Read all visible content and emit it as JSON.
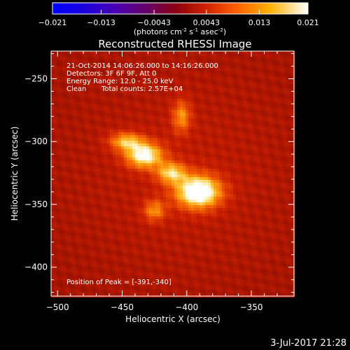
{
  "colorbar": {
    "tick_labels": [
      "-0.021",
      "-0.013",
      "-0.0043",
      "0.0043",
      "0.013",
      "0.021"
    ],
    "min": -0.021,
    "max": 0.021,
    "unit_prefix": "(photons cm",
    "unit_exp1": "-2",
    "unit_mid": " s",
    "unit_exp2": "-1",
    "unit_mid2": " asec",
    "unit_exp3": "-2",
    "unit_suffix": ")"
  },
  "chart_data": {
    "type": "heatmap",
    "title": "Reconstructed RHESSI Image",
    "xlabel": "Heliocentric X (arcsec)",
    "ylabel": "Heliocentric Y (arcsec)",
    "xlim": [
      -505,
      -317
    ],
    "ylim": [
      -423,
      -228
    ],
    "x_ticks": [
      -500,
      -450,
      -400,
      -350
    ],
    "y_ticks": [
      -250,
      -300,
      -350,
      -400
    ],
    "x_tick_labels": [
      "−500",
      "−450",
      "−400",
      "−350"
    ],
    "y_tick_labels": [
      "−250",
      "−300",
      "−350",
      "−400"
    ],
    "sources": [
      {
        "x": -391,
        "y": -340,
        "sx": 12,
        "sy": 9,
        "amp": 1.0
      },
      {
        "x": -433,
        "y": -311,
        "sx": 10,
        "sy": 7,
        "amp": 0.82
      },
      {
        "x": -447,
        "y": -300,
        "sx": 9,
        "sy": 5,
        "amp": 0.55
      },
      {
        "x": -412,
        "y": -325,
        "sx": 8,
        "sy": 6,
        "amp": 0.6
      },
      {
        "x": -404,
        "y": -280,
        "sx": 5,
        "sy": 9,
        "amp": 0.45
      },
      {
        "x": -425,
        "y": -355,
        "sx": 6,
        "sy": 6,
        "amp": 0.42
      }
    ],
    "annotations": {
      "line1": "21-Oct-2014 14:06:26.000 to 14:16:26.000",
      "line2": "Detectors: 3F 6F 9F, Att 0",
      "line3": "Energy Range: 12.0 - 25.0 keV",
      "line4_a": "Clean",
      "line4_b": "Total counts: 2.57E+04",
      "peak": "Position of Peak = [-391,-340]"
    }
  },
  "footer": {
    "timestamp": "3-Jul-2017 21:28"
  }
}
